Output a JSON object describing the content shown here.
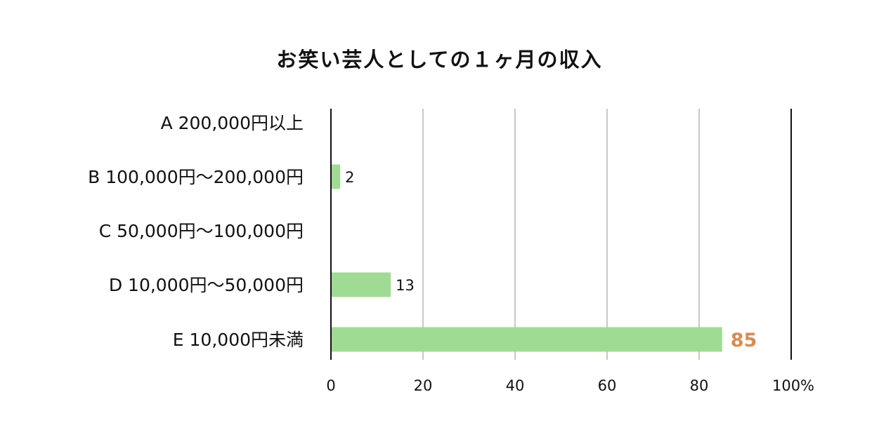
{
  "chart_data": {
    "type": "bar",
    "orientation": "horizontal",
    "title": "お笑い芸人としての１ヶ月の収入",
    "categories": [
      "A 200,000円以上",
      "B 100,000円～200,000円",
      "C 50,000円～100,000円",
      "D 10,000円～50,000円",
      "E 10,000円未満"
    ],
    "values": [
      0,
      2,
      0,
      13,
      85
    ],
    "value_labels": [
      "",
      "2",
      "",
      "13",
      "85"
    ],
    "highlight_index": 4,
    "xlim": [
      0,
      100
    ],
    "xticks": [
      0,
      20,
      40,
      60,
      80,
      100
    ],
    "xtick_labels": [
      "0",
      "20",
      "40",
      "60",
      "80",
      "100%"
    ],
    "grid": true,
    "legend": "none",
    "colors": {
      "bar": "#a0db94",
      "highlight_label": "#d98b52",
      "grid": "#c8c8c8",
      "axis": "#111111"
    }
  }
}
